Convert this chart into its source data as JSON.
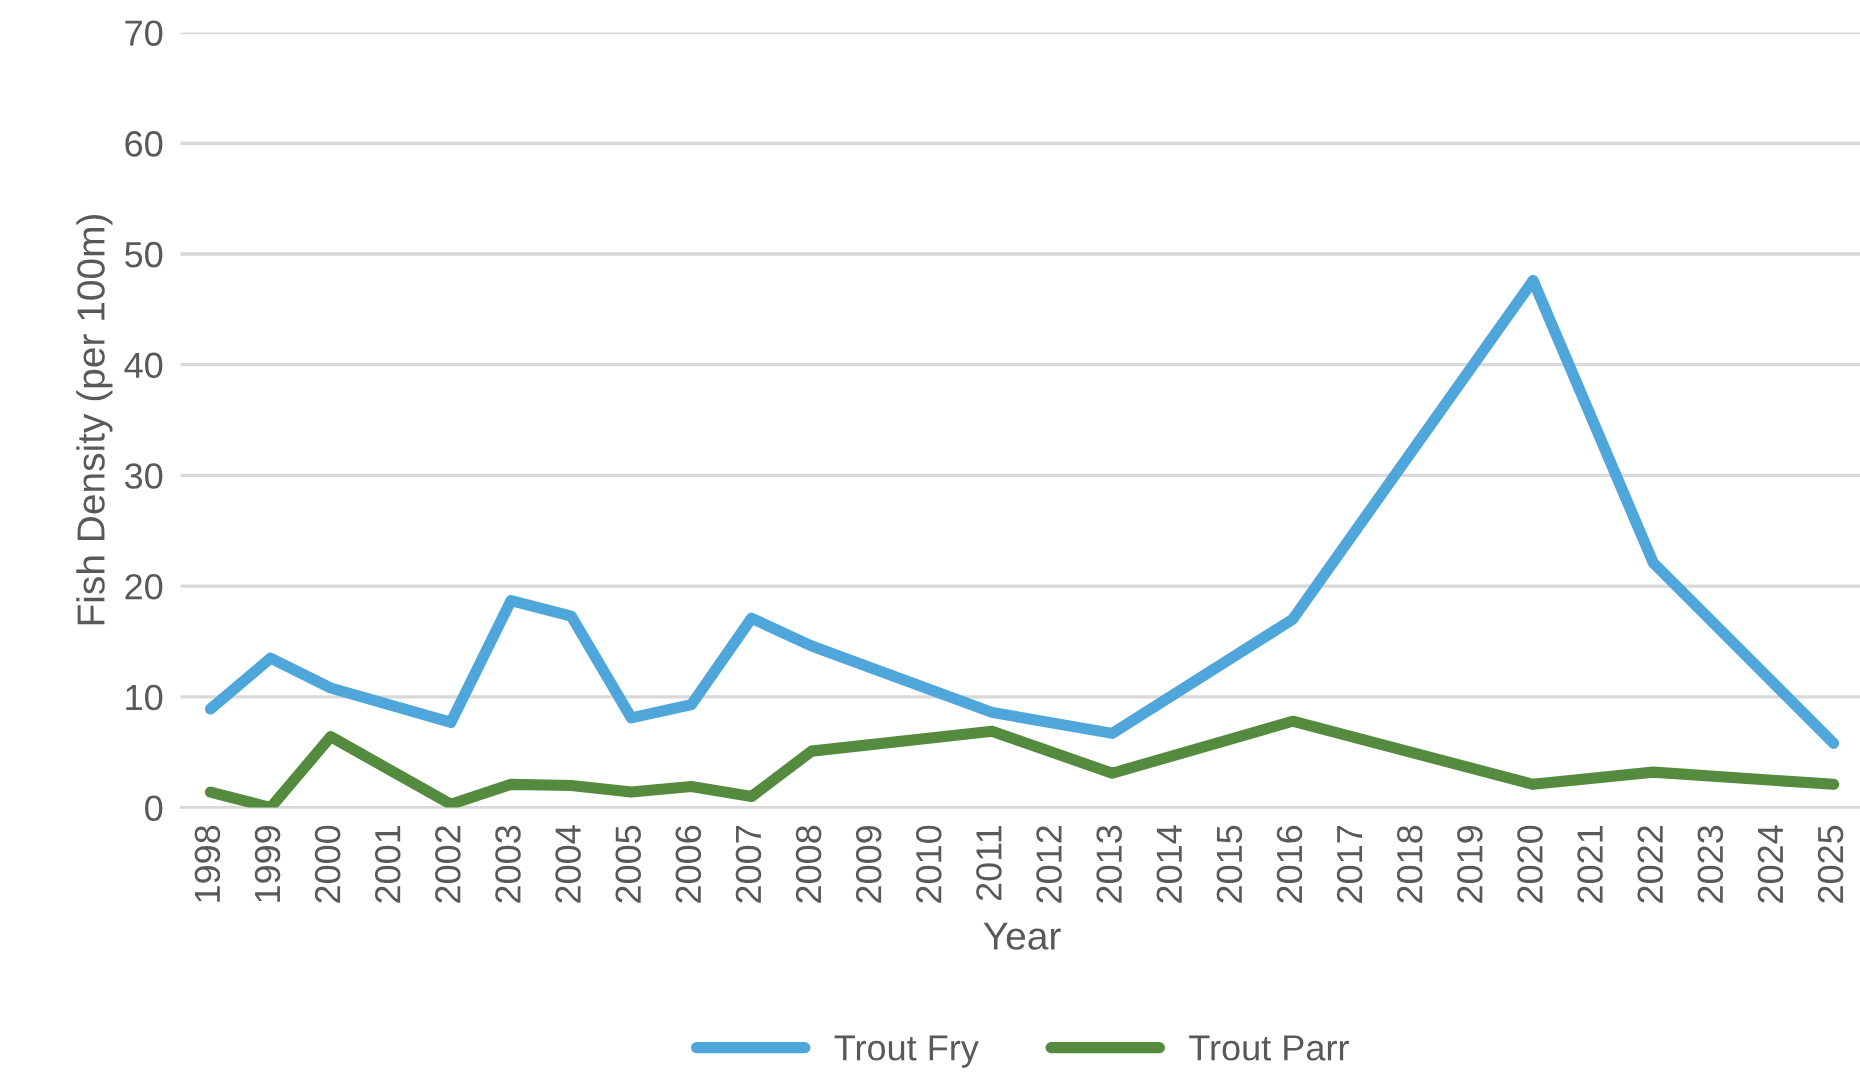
{
  "chart_data": {
    "type": "line",
    "xlabel": "Year",
    "ylabel": "Fish Density (per 100m)",
    "xlim": [
      1997.5,
      2025.5
    ],
    "xticks": [
      1998,
      1999,
      2000,
      2001,
      2002,
      2003,
      2004,
      2005,
      2006,
      2007,
      2008,
      2009,
      2010,
      2011,
      2012,
      2013,
      2014,
      2015,
      2016,
      2017,
      2018,
      2019,
      2020,
      2021,
      2022,
      2023,
      2024,
      2025
    ],
    "ylim": [
      0,
      70
    ],
    "yticks": [
      0,
      10,
      20,
      30,
      40,
      50,
      60,
      70
    ],
    "grid": "y",
    "legend": "bottom",
    "marker": "none",
    "line_style": "solid",
    "x": [
      1998,
      1999,
      2000,
      2002,
      2003,
      2004,
      2005,
      2006,
      2007,
      2008,
      2011,
      2013,
      2016,
      2020,
      2022,
      2025
    ],
    "series": [
      {
        "name": "Trout Fry",
        "color": "#4ea6da",
        "values": [
          8.9,
          13.5,
          10.8,
          7.7,
          18.7,
          17.3,
          8.1,
          9.3,
          17.1,
          14.6,
          8.6,
          6.7,
          17.0,
          47.6,
          22.1,
          5.8
        ]
      },
      {
        "name": "Trout Parr",
        "color": "#548b3e",
        "values": [
          1.4,
          0,
          6.4,
          0.3,
          2.1,
          2.0,
          1.4,
          1.9,
          1.0,
          5.1,
          6.9,
          3.1,
          7.8,
          2.1,
          3.2,
          2.1
        ]
      }
    ]
  }
}
